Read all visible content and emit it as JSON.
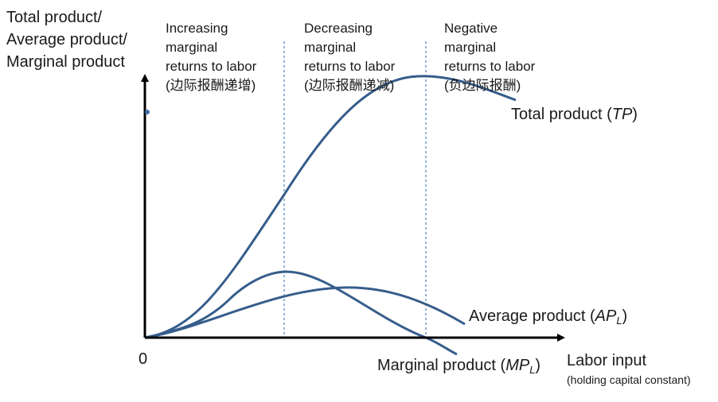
{
  "colors": {
    "axis": "#000000",
    "curve": "#365D8B",
    "divider": "#4A86C0",
    "marker": "#3A6EA5"
  },
  "y_axis_label": {
    "line1": "Total product/",
    "line2": "Average product/",
    "line3": "Marginal product"
  },
  "x_axis_label": {
    "main": "Labor input",
    "note": "(holding capital constant)"
  },
  "origin_label": "0",
  "regions": [
    {
      "line1": "Increasing",
      "line2": "marginal",
      "line3": "returns to labor",
      "line4": "(边际报酬递增)"
    },
    {
      "line1": "Decreasing",
      "line2": "marginal",
      "line3": "returns to labor",
      "line4": "(边际报酬递减)"
    },
    {
      "line1": "Negative",
      "line2": "marginal",
      "line3": "returns to labor",
      "line4": "(负边际报酬)"
    }
  ],
  "curves": {
    "tp": {
      "text": "Total product (",
      "abbr": "TP",
      "close": ")"
    },
    "ap": {
      "text": "Average product (",
      "abbr": "AP",
      "sub": "L",
      "close": ")"
    },
    "mp": {
      "text": "Marginal product (",
      "abbr": "MP",
      "sub": "L",
      "close": ")"
    }
  }
}
